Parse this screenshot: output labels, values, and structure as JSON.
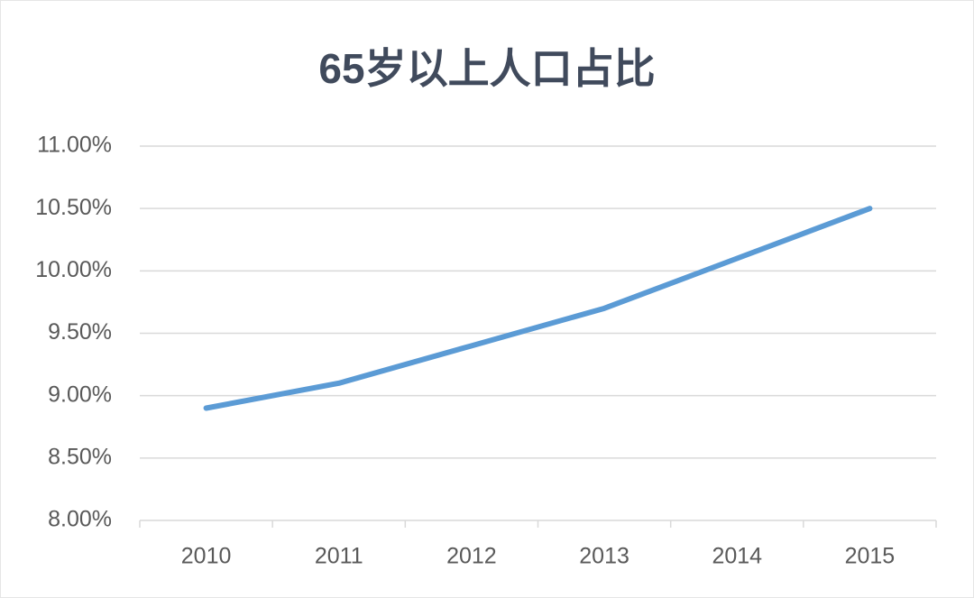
{
  "chart_data": {
    "type": "line",
    "title": "65岁以上人口占比",
    "categories": [
      "2010",
      "2011",
      "2012",
      "2013",
      "2014",
      "2015"
    ],
    "series": [
      {
        "name": "65岁以上人口占比",
        "color": "#5b9bd5",
        "values": [
          8.9,
          9.1,
          9.4,
          9.7,
          10.1,
          10.5
        ]
      }
    ],
    "ylim": [
      8,
      11
    ],
    "yticks": [
      {
        "value": 8,
        "label": "8.00%"
      },
      {
        "value": 8.5,
        "label": "8.50%"
      },
      {
        "value": 9,
        "label": "9.00%"
      },
      {
        "value": 9.5,
        "label": "9.50%"
      },
      {
        "value": 10,
        "label": "10.00%"
      },
      {
        "value": 10.5,
        "label": "10.50%"
      },
      {
        "value": 11,
        "label": "11.00%"
      }
    ],
    "grid": true
  }
}
